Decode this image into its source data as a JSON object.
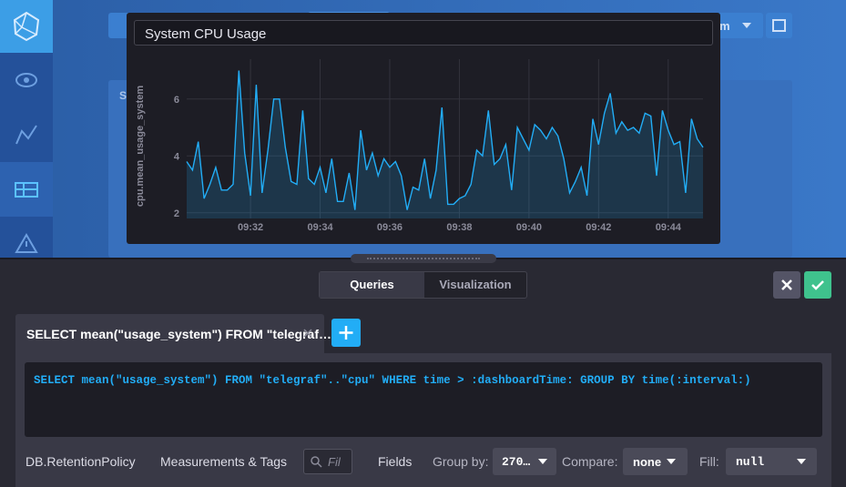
{
  "chart_data": {
    "type": "area",
    "title": "System CPU Usage",
    "ylabel": "cpu.mean_usage_system",
    "values": [
      3.8,
      3.5,
      4.5,
      2.5,
      3.0,
      3.6,
      2.8,
      2.8,
      3.0,
      7.0,
      4.1,
      2.6,
      6.5,
      2.7,
      4.2,
      6.0,
      6.0,
      4.3,
      3.1,
      3.0,
      5.6,
      3.2,
      3.0,
      3.6,
      2.7,
      3.9,
      2.4,
      2.4,
      3.4,
      2.1,
      4.9,
      3.5,
      4.1,
      3.3,
      3.9,
      3.6,
      3.8,
      3.3,
      2.1,
      2.9,
      2.8,
      3.9,
      2.5,
      3.5,
      5.7,
      2.3,
      2.3,
      2.5,
      2.6,
      3.0,
      4.2,
      4.0,
      5.6,
      3.7,
      3.9,
      4.4,
      2.8,
      5.0,
      4.6,
      4.2,
      5.1,
      4.9,
      4.6,
      5.0,
      4.7,
      3.9,
      2.7,
      3.1,
      3.6,
      2.6,
      5.3,
      4.4,
      5.5,
      6.2,
      4.8,
      5.2,
      4.9,
      5.0,
      4.8,
      5.5,
      5.4,
      3.3,
      5.6,
      4.9,
      4.4,
      4.5,
      2.7,
      5.3,
      4.6,
      4.3
    ],
    "color": "#22adf6",
    "xlim": [
      0,
      89
    ],
    "xticks": [
      {
        "value": 11,
        "label": "09:32"
      },
      {
        "value": 23,
        "label": "09:34"
      },
      {
        "value": 35,
        "label": "09:36"
      },
      {
        "value": 47,
        "label": "09:38"
      },
      {
        "value": 59,
        "label": "09:40"
      },
      {
        "value": 71,
        "label": "09:42"
      },
      {
        "value": 83,
        "label": "09:44"
      }
    ],
    "ylim": [
      1.8,
      7.4
    ],
    "yticks": [
      2,
      4,
      6
    ],
    "grid": true
  },
  "ui": {
    "background": {
      "card_title_fragment": "S",
      "button_fragment": "m"
    },
    "tabs": [
      "Queries",
      "Visualization"
    ],
    "query_tab": "SELECT mean(\"usage_system\") FROM \"telegraf…",
    "query_text": "SELECT mean(\"usage_system\") FROM \"telegraf\"..\"cpu\" WHERE time > :dashboardTime: GROUP BY time(:interval:)",
    "builder": {
      "db": "DB.RetentionPolicy",
      "measurements": "Measurements & Tags",
      "search_placeholder": "Fil",
      "fields": "Fields",
      "group_by_label": "Group by:",
      "group_by_value": "270…",
      "compare_label": "Compare:",
      "compare_value": "none",
      "fill_label": "Fill:",
      "fill_value": "null"
    }
  }
}
